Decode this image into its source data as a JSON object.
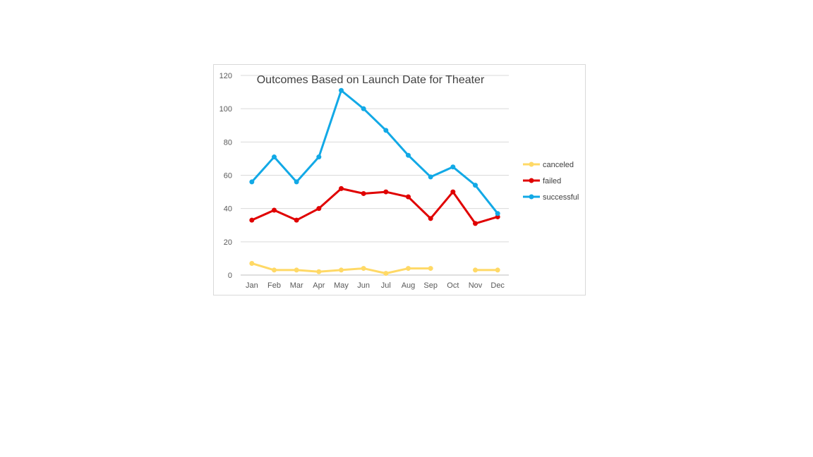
{
  "chart_data": {
    "type": "line",
    "title": "Outcomes Based on Launch Date for Theater",
    "xlabel": "",
    "ylabel": "",
    "categories": [
      "Jan",
      "Feb",
      "Mar",
      "Apr",
      "May",
      "Jun",
      "Jul",
      "Aug",
      "Sep",
      "Oct",
      "Nov",
      "Dec"
    ],
    "ylim": [
      0,
      120
    ],
    "yticks": [
      "0",
      "20",
      "40",
      "60",
      "80",
      "100",
      "120"
    ],
    "grid": true,
    "legend_position": "right",
    "series": [
      {
        "name": "canceled",
        "color": "#FFD966",
        "values": [
          7,
          3,
          3,
          2,
          3,
          4,
          1,
          4,
          4,
          null,
          3,
          3
        ]
      },
      {
        "name": "failed",
        "color": "#E00000",
        "values": [
          33,
          39,
          33,
          40,
          52,
          49,
          50,
          47,
          34,
          50,
          31,
          35
        ]
      },
      {
        "name": "successful",
        "color": "#12A9E6",
        "values": [
          56,
          71,
          56,
          71,
          111,
          100,
          87,
          72,
          59,
          65,
          54,
          37
        ]
      }
    ]
  }
}
